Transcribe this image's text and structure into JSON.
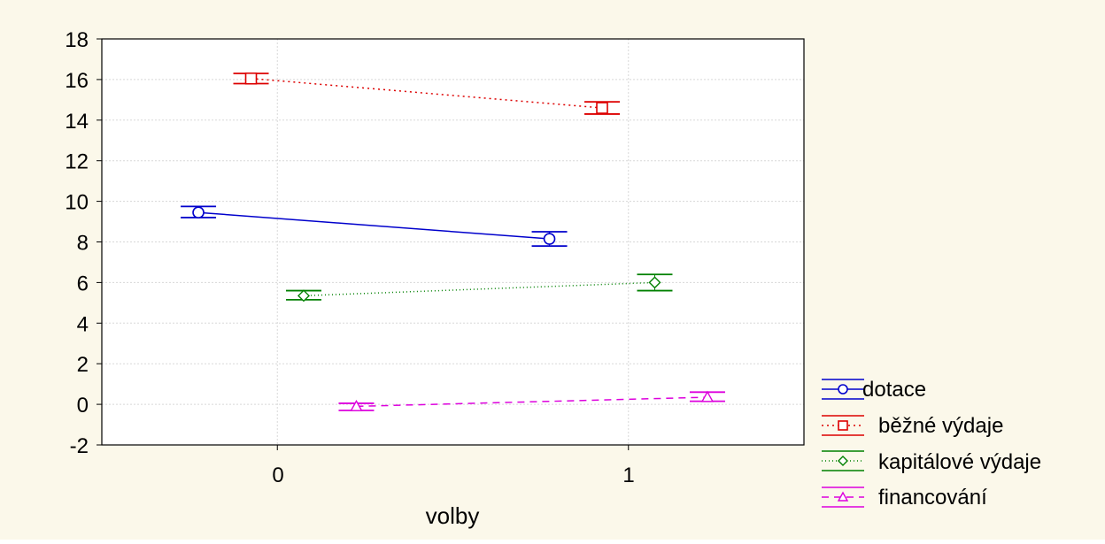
{
  "colors": {
    "background": "#FBF8EA",
    "plot_background": "#FFFFFF",
    "grid": "#D8D8D8",
    "axis": "#000000"
  },
  "chart_data": {
    "type": "line",
    "title": "",
    "xlabel": "volby",
    "ylabel": "",
    "categories": [
      "0",
      "1"
    ],
    "xlim": [
      -0.5,
      1.5
    ],
    "ylim": [
      -2,
      18
    ],
    "yticks": [
      "18",
      "16",
      "14",
      "12",
      "10",
      "8",
      "6",
      "4",
      "2",
      "0",
      "-2"
    ],
    "grid": true,
    "legend_position": "right-bottom",
    "error_bars": true,
    "series": [
      {
        "name": "dotace",
        "color": "#0000CC",
        "marker": "circle",
        "line_style": "solid",
        "x_offset": -0.225,
        "values": [
          9.45,
          8.15
        ],
        "errors": [
          [
            9.2,
            9.75
          ],
          [
            7.8,
            8.5
          ]
        ]
      },
      {
        "name": "běžné výdaje",
        "color": "#DD0000",
        "marker": "square",
        "line_style": "dotted",
        "x_offset": -0.075,
        "values": [
          16.05,
          14.6
        ],
        "errors": [
          [
            15.8,
            16.3
          ],
          [
            14.3,
            14.9
          ]
        ]
      },
      {
        "name": "kapitálové výdaje",
        "color": "#008000",
        "marker": "diamond",
        "line_style": "dotted-fine",
        "x_offset": 0.075,
        "values": [
          5.35,
          6.0
        ],
        "errors": [
          [
            5.15,
            5.6
          ],
          [
            5.6,
            6.4
          ]
        ]
      },
      {
        "name": "financování",
        "color": "#DD00DD",
        "marker": "triangle",
        "line_style": "dashed",
        "x_offset": 0.225,
        "values": [
          -0.1,
          0.35
        ],
        "errors": [
          [
            -0.3,
            0.05
          ],
          [
            0.15,
            0.6
          ]
        ]
      }
    ]
  }
}
